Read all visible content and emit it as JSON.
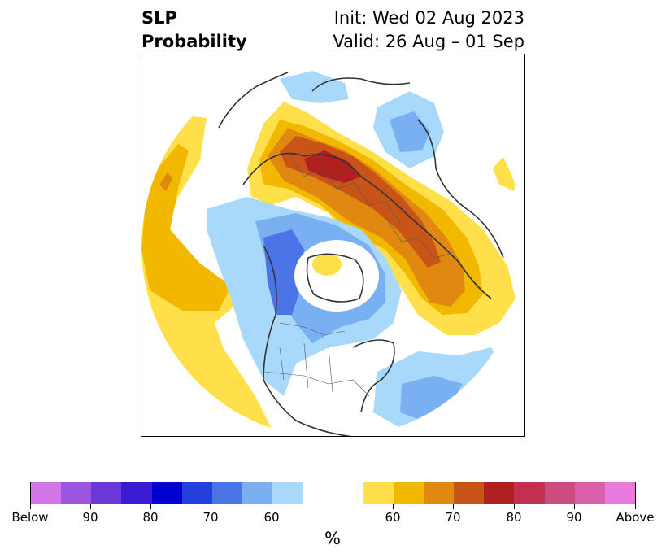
{
  "title": {
    "left_line1": "SLP",
    "left_line2": "Probability",
    "right_line1": "Init: Wed 02 Aug 2023",
    "right_line2": "Valid: 26 Aug – 01 Sep"
  },
  "colorbar": {
    "colors": [
      "#d275e8",
      "#9b55e0",
      "#6a38d8",
      "#3a1bd2",
      "#0000d0",
      "#2440dc",
      "#4b74e6",
      "#78b0f2",
      "#a8d8fa",
      "#ffffff",
      "#ffe04a",
      "#f2b800",
      "#e08810",
      "#c85418",
      "#b02020",
      "#c43050",
      "#cc4c80",
      "#db60ac",
      "#e87ae0"
    ],
    "tick_labels": [
      "Below",
      "90",
      "80",
      "70",
      "60",
      "60",
      "70",
      "80",
      "90",
      "Above"
    ],
    "unit": "%"
  },
  "map": {
    "type": "polar-stereographic",
    "colors": {
      "light_blue": "#a8d8fa",
      "mid_blue": "#78b0f2",
      "deep_blue": "#4b74e6",
      "yellow": "#ffe04a",
      "gold": "#f2b800",
      "orange": "#e08810",
      "rust": "#c85418",
      "red": "#b02020",
      "coast": "#333333",
      "border": "#555555"
    }
  }
}
